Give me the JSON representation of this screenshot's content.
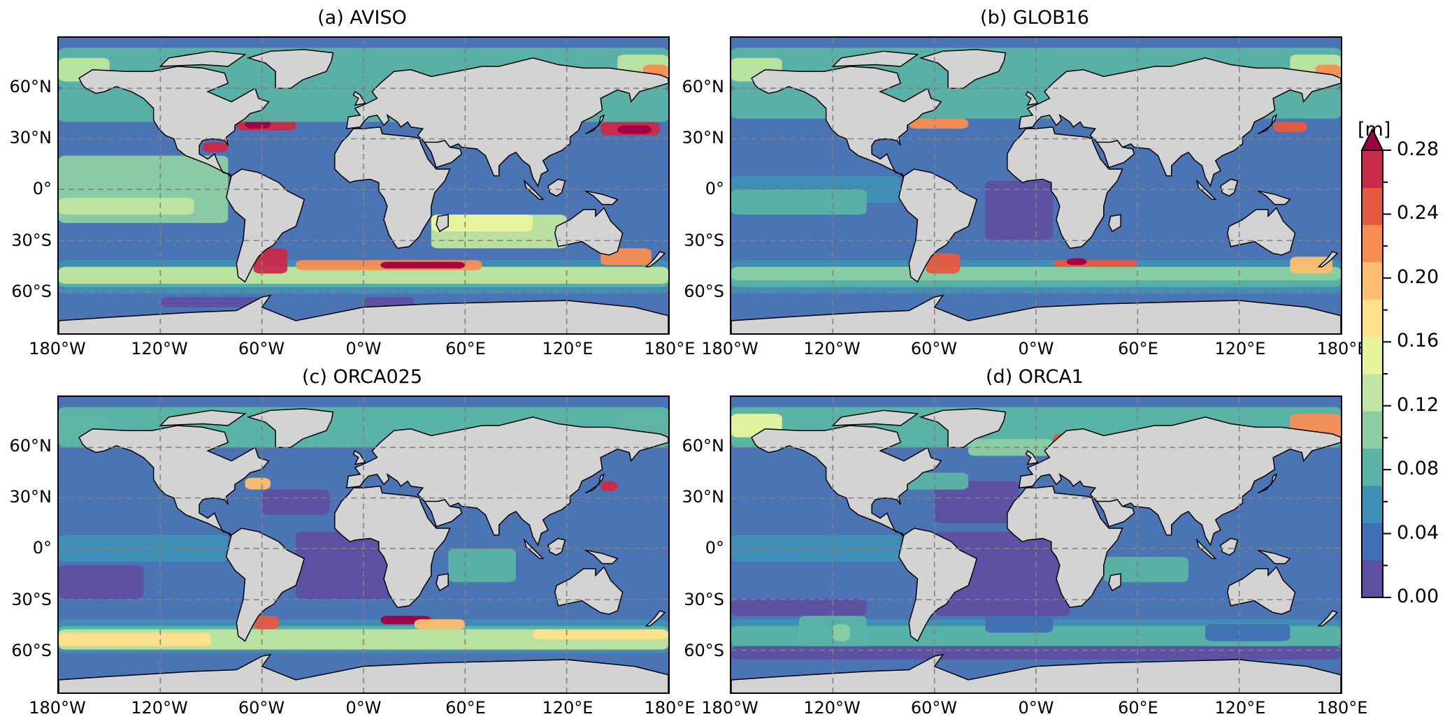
{
  "panels": [
    {
      "id": "a",
      "title": "(a) AVISO",
      "variant": "aviso"
    },
    {
      "id": "b",
      "title": "(b) GLOB16",
      "variant": "glob16"
    },
    {
      "id": "c",
      "title": "(c) ORCA025",
      "variant": "orca025"
    },
    {
      "id": "d",
      "title": "(d) ORCA1",
      "variant": "orca1"
    }
  ],
  "lat_labels": [
    "60°N",
    "30°N",
    "0°",
    "30°S",
    "60°S"
  ],
  "lon_labels": [
    "180°W",
    "120°W",
    "60°W",
    "0°W",
    "60°E",
    "120°E",
    "180°E"
  ],
  "colorbar": {
    "unit": "[m]",
    "tick_labels": [
      "0.28",
      "0.24",
      "0.20",
      "0.16",
      "0.12",
      "0.08",
      "0.04",
      "0.00"
    ],
    "min": 0.0,
    "max": 0.28,
    "extend": "max",
    "colors": [
      "#5e4fa2",
      "#3f6fb4",
      "#3d8fb5",
      "#5ab3a6",
      "#8ccfa3",
      "#bfe5a0",
      "#e8f59c",
      "#fee08b",
      "#fdbf6f",
      "#f88d52",
      "#e65a3f",
      "#c92a4a",
      "#9e0142"
    ]
  },
  "colors": {
    "land": "#d3d3d3",
    "ocean_low": "#5e4fa2",
    "ocean_base": "#4a74b4",
    "grid": "#808080"
  }
}
